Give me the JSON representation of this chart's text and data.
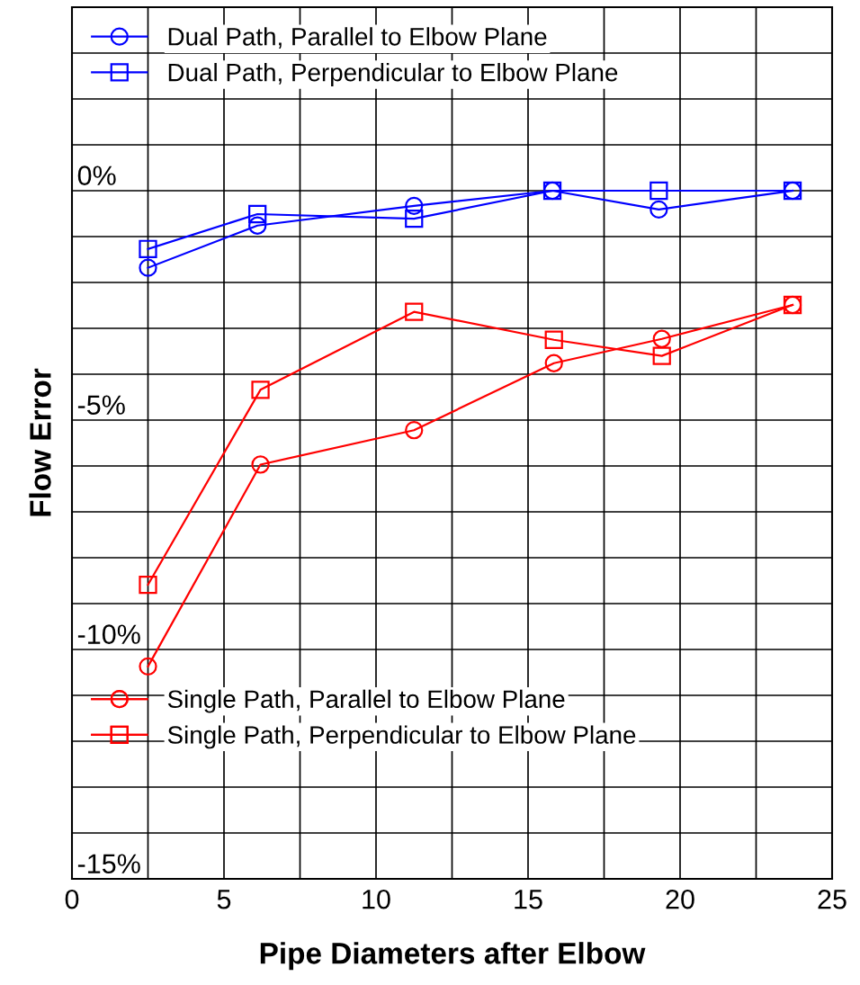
{
  "chart_data": {
    "type": "line",
    "xlabel": "Pipe Diameters after Elbow",
    "ylabel": "Flow Error",
    "xlim": [
      0,
      25
    ],
    "ylim": [
      -15,
      4
    ],
    "xticks": [
      0,
      {
        "value": 2.5,
        "label": null
      },
      5,
      {
        "value": 7.5,
        "label": null
      },
      10,
      {
        "value": 12.5,
        "label": null
      },
      15,
      {
        "value": 17.5,
        "label": null
      },
      20,
      {
        "value": 22.5,
        "label": null
      },
      25
    ],
    "yticks": [
      {
        "value": -15,
        "label": "-15%"
      },
      {
        "value": -14,
        "label": null
      },
      {
        "value": -13,
        "label": null
      },
      {
        "value": -12,
        "label": null
      },
      {
        "value": -11,
        "label": null
      },
      {
        "value": -10,
        "label": "-10%"
      },
      {
        "value": -9,
        "label": null
      },
      {
        "value": -8,
        "label": null
      },
      {
        "value": -7,
        "label": null
      },
      {
        "value": -6,
        "label": null
      },
      {
        "value": -5,
        "label": "-5%"
      },
      {
        "value": -4,
        "label": null
      },
      {
        "value": -3,
        "label": null
      },
      {
        "value": -2,
        "label": null
      },
      {
        "value": -1,
        "label": null
      },
      {
        "value": 0,
        "label": "0%"
      },
      {
        "value": 1,
        "label": null
      },
      {
        "value": 2,
        "label": null
      },
      {
        "value": 3,
        "label": null
      },
      {
        "value": 4,
        "label": null
      }
    ],
    "grid": true,
    "legend": "top left",
    "line_style": "solid",
    "series": [
      {
        "name": "Dual Path, Parallel to Elbow Plane",
        "color": "#0000ff",
        "marker": "circle",
        "x": [
          2.5,
          6.1,
          11.25,
          15.8,
          19.3,
          23.7
        ],
        "values": [
          -1.68,
          -0.76,
          -0.33,
          0,
          -0.41,
          0
        ]
      },
      {
        "name": "Dual Path, Perpendicular to Elbow Plane",
        "color": "#0000ff",
        "marker": "square",
        "x": [
          2.5,
          6.1,
          11.25,
          15.8,
          19.3,
          23.7
        ],
        "values": [
          -1.27,
          -0.51,
          -0.61,
          0,
          0,
          0
        ]
      },
      {
        "name": "Single Path, Parallel to Elbow Plane",
        "color": "#ff0000",
        "marker": "circle",
        "x": [
          2.5,
          6.2,
          11.25,
          15.85,
          19.4,
          23.7
        ],
        "values": [
          -10.37,
          -5.97,
          -5.22,
          -3.76,
          -3.23,
          -2.49
        ]
      },
      {
        "name": "Single Path, Perpendicular to Elbow Plane",
        "color": "#ff0000",
        "marker": "square",
        "x": [
          2.5,
          6.2,
          11.25,
          15.85,
          19.4,
          23.7
        ],
        "values": [
          -8.59,
          -4.34,
          -2.64,
          -3.25,
          -3.6,
          -2.49
        ]
      }
    ]
  }
}
